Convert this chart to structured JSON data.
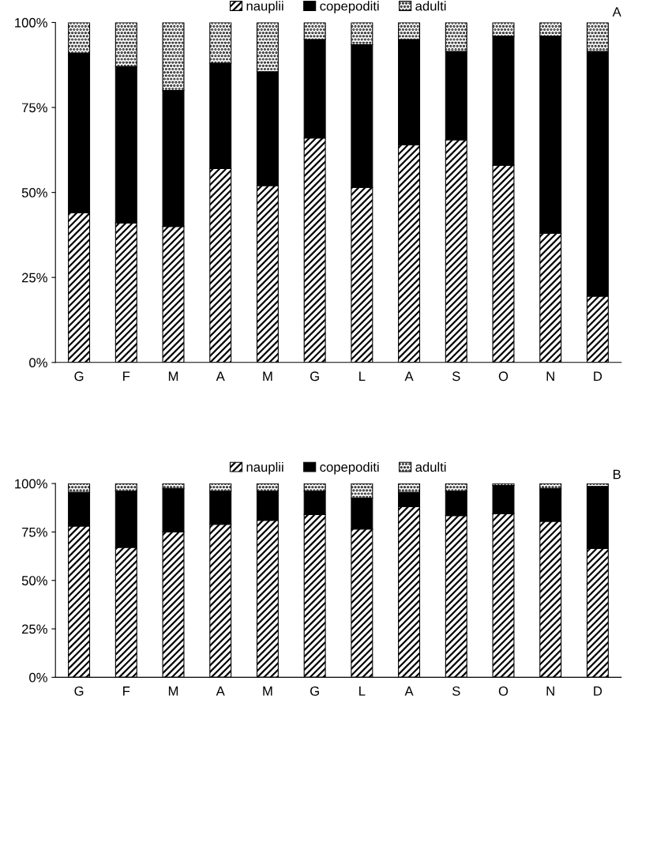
{
  "chart_data": [
    {
      "type": "bar",
      "stacked": true,
      "legend": "top",
      "annotations": [
        "A"
      ],
      "categories": [
        "G",
        "F",
        "M",
        "A",
        "M",
        "G",
        "L",
        "A",
        "S",
        "O",
        "N",
        "D"
      ],
      "ylim": [
        0,
        100
      ],
      "yticks": [
        {
          "value": 0,
          "label": "0%"
        },
        {
          "value": 25,
          "label": "25%"
        },
        {
          "value": 50,
          "label": "50%"
        },
        {
          "value": 75,
          "label": "75%"
        },
        {
          "value": 100,
          "label": "100%"
        }
      ],
      "series": [
        {
          "name": "nauplii",
          "color": "#000000",
          "values": [
            44,
            41,
            40,
            57,
            52,
            66,
            51.5,
            64,
            65.5,
            58,
            38,
            19.5
          ]
        },
        {
          "name": "copepoditi",
          "color": "#000000",
          "values": [
            47,
            46,
            40,
            31,
            33.5,
            29,
            42,
            31,
            26,
            38,
            58,
            72
          ]
        },
        {
          "name": "adulti",
          "color": "#000000",
          "values": [
            9,
            13,
            20,
            12,
            14.5,
            5,
            6.5,
            5,
            8.5,
            4,
            4,
            8.5
          ]
        }
      ]
    },
    {
      "type": "bar",
      "stacked": true,
      "legend": "top",
      "annotations": [
        "B"
      ],
      "categories": [
        "G",
        "F",
        "M",
        "A",
        "M",
        "G",
        "L",
        "A",
        "S",
        "O",
        "N",
        "D"
      ],
      "ylim": [
        0,
        100
      ],
      "yticks": [
        {
          "value": 0,
          "label": "0%"
        },
        {
          "value": 25,
          "label": "25%"
        },
        {
          "value": 50,
          "label": "50%"
        },
        {
          "value": 75,
          "label": "75%"
        },
        {
          "value": 100,
          "label": "100%"
        }
      ],
      "series": [
        {
          "name": "nauplii",
          "color": "#000000",
          "values": [
            78,
            67,
            75,
            79,
            81,
            84,
            76.5,
            88,
            83.5,
            84.5,
            80.5,
            66.5
          ]
        },
        {
          "name": "copepoditi",
          "color": "#000000",
          "values": [
            17.5,
            29,
            22.5,
            17,
            15,
            12,
            16,
            7.5,
            12.5,
            14.5,
            17,
            32
          ]
        },
        {
          "name": "adulti",
          "color": "#000000",
          "values": [
            4.5,
            4,
            2.5,
            4,
            4,
            4,
            7.5,
            4.5,
            4,
            1,
            2.5,
            1.5
          ]
        }
      ]
    }
  ]
}
